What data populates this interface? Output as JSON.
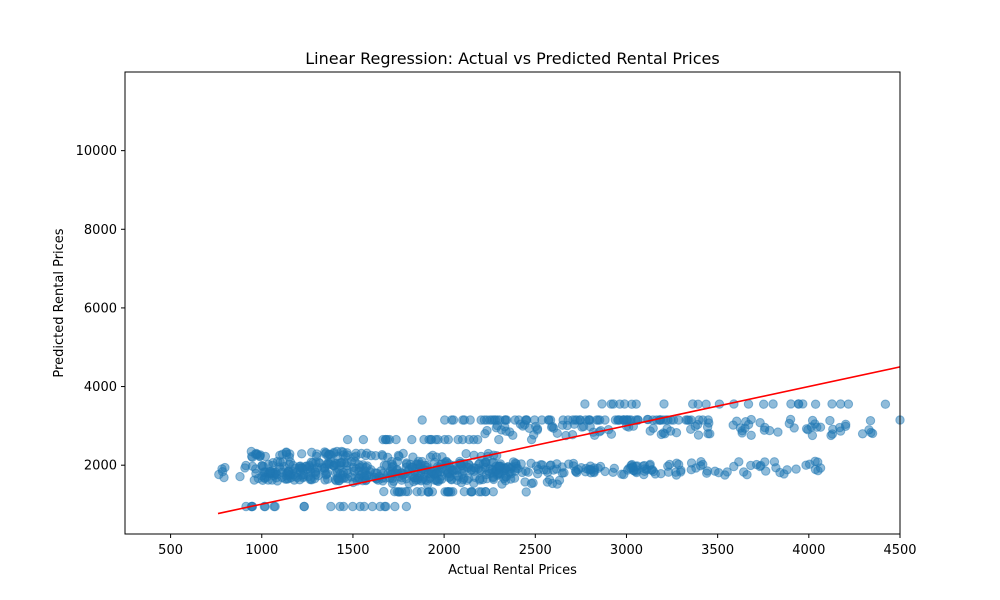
{
  "chart_data": {
    "type": "scatter",
    "title": "Linear Regression: Actual vs Predicted Rental Prices",
    "xlabel": "Actual Rental Prices",
    "ylabel": "Predicted Rental Prices",
    "xlim": [
      250,
      4500
    ],
    "ylim": [
      250,
      12000
    ],
    "xticks": [
      500,
      1000,
      1500,
      2000,
      2500,
      3000,
      3500,
      4000,
      4500
    ],
    "yticks": [
      2000,
      4000,
      6000,
      8000,
      10000
    ],
    "grid": false,
    "colors": {
      "points": "#1f77b4",
      "line": "#ff0000"
    },
    "regression_line": {
      "x": [
        760,
        4500
      ],
      "y": [
        770,
        4500
      ]
    },
    "clusters": [
      {
        "x_min": 880,
        "x_max": 1800,
        "y_min": 950,
        "y_max": 950,
        "n": 22
      },
      {
        "x_min": 1580,
        "x_max": 2320,
        "y_min": 1320,
        "y_max": 1330,
        "n": 30
      },
      {
        "x_min": 1500,
        "x_max": 2700,
        "y_min": 1500,
        "y_max": 1650,
        "n": 25
      },
      {
        "x_min": 760,
        "x_max": 1100,
        "y_min": 1600,
        "y_max": 2000,
        "n": 18
      },
      {
        "x_min": 1000,
        "x_max": 2400,
        "y_min": 1600,
        "y_max": 2100,
        "n": 360
      },
      {
        "x_min": 900,
        "x_max": 1600,
        "y_min": 2200,
        "y_max": 2350,
        "n": 45
      },
      {
        "x_min": 1600,
        "x_max": 2300,
        "y_min": 2200,
        "y_max": 2300,
        "n": 20
      },
      {
        "x_min": 2300,
        "x_max": 3300,
        "y_min": 1750,
        "y_max": 2050,
        "n": 90
      },
      {
        "x_min": 3100,
        "x_max": 4120,
        "y_min": 1750,
        "y_max": 2100,
        "n": 40
      },
      {
        "x_min": 1420,
        "x_max": 2200,
        "y_min": 2650,
        "y_max": 2650,
        "n": 22
      },
      {
        "x_min": 2200,
        "x_max": 3200,
        "y_min": 2750,
        "y_max": 3050,
        "n": 40
      },
      {
        "x_min": 2000,
        "x_max": 3450,
        "y_min": 3150,
        "y_max": 3150,
        "n": 75
      },
      {
        "x_min": 3100,
        "x_max": 4350,
        "y_min": 2750,
        "y_max": 3200,
        "n": 55
      },
      {
        "x_min": 2500,
        "x_max": 4220,
        "y_min": 3550,
        "y_max": 3560,
        "n": 25
      }
    ],
    "points": [
      {
        "x": 1880,
        "y": 3150
      },
      {
        "x": 2300,
        "y": 2650
      },
      {
        "x": 2450,
        "y": 1320
      },
      {
        "x": 2620,
        "y": 1520
      },
      {
        "x": 2480,
        "y": 2650
      },
      {
        "x": 4500,
        "y": 3150
      },
      {
        "x": 4420,
        "y": 3550
      },
      {
        "x": 4330,
        "y": 2900
      },
      {
        "x": 3540,
        "y": 1750
      }
    ]
  }
}
